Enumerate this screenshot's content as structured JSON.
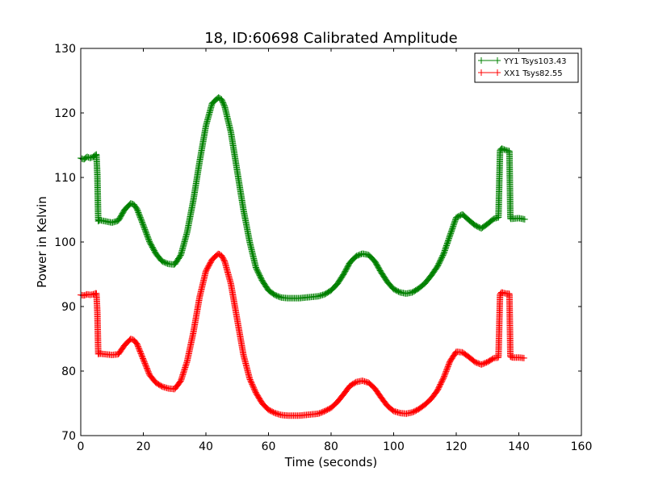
{
  "chart_data": {
    "type": "line",
    "title": "18, ID:60698 Calibrated Amplitude",
    "xlabel": "Time (seconds)",
    "ylabel": "Power in Kelvin",
    "xlim": [
      0,
      160
    ],
    "ylim": [
      70,
      130
    ],
    "xticks": [
      0,
      20,
      40,
      60,
      80,
      100,
      120,
      140,
      160
    ],
    "yticks": [
      70,
      80,
      90,
      100,
      110,
      120,
      130
    ],
    "grid": false,
    "legend_position": "top-right",
    "series": [
      {
        "name": "YY1 Tsys103.43",
        "color": "#008000",
        "marker": "+",
        "x": [
          0,
          1,
          2,
          3,
          4,
          5,
          5.3,
          5.6,
          6,
          8,
          10,
          12,
          14,
          16,
          17,
          18,
          20,
          22,
          24,
          26,
          28,
          30,
          32,
          34,
          36,
          38,
          40,
          42,
          44,
          45,
          46,
          48,
          50,
          52,
          54,
          56,
          58,
          60,
          62,
          64,
          66,
          68,
          70,
          72,
          74,
          76,
          78,
          80,
          82,
          84,
          86,
          88,
          90,
          92,
          94,
          96,
          98,
          100,
          102,
          104,
          106,
          108,
          110,
          112,
          114,
          116,
          118,
          120,
          122,
          124,
          126,
          128,
          130,
          132,
          133.5,
          134,
          134.5,
          136,
          137,
          137.3,
          138,
          140,
          142
        ],
        "y": [
          113,
          112.8,
          113.2,
          113,
          113.2,
          113.6,
          110.5,
          103.2,
          103.4,
          103.2,
          103,
          103.3,
          105,
          106,
          105.8,
          105.1,
          102.6,
          100,
          98.2,
          97,
          96.6,
          96.5,
          98,
          101.5,
          106.5,
          112.5,
          118,
          121.5,
          122.4,
          122.1,
          121,
          117,
          111,
          105,
          100,
          96,
          94,
          92.5,
          91.8,
          91.4,
          91.3,
          91.3,
          91.3,
          91.4,
          91.5,
          91.6,
          91.9,
          92.5,
          93.5,
          95,
          96.8,
          97.8,
          98.2,
          98,
          97,
          95.3,
          93.8,
          92.7,
          92.2,
          92,
          92.2,
          92.8,
          93.6,
          94.8,
          96.2,
          98.2,
          101,
          103.8,
          104.3,
          103.4,
          102.6,
          102.1,
          102.8,
          103.6,
          103.8,
          114.2,
          114.5,
          114.2,
          114.1,
          103.6,
          103.6,
          103.7,
          103.5
        ]
      },
      {
        "name": "XX1 Tsys82.55",
        "color": "#ff0000",
        "marker": "+",
        "x": [
          0,
          1,
          2,
          3,
          4,
          5,
          5.3,
          5.6,
          6,
          8,
          10,
          12,
          14,
          16,
          17,
          18,
          20,
          22,
          24,
          26,
          28,
          30,
          32,
          34,
          36,
          38,
          40,
          42,
          44,
          45,
          46,
          48,
          50,
          52,
          54,
          56,
          58,
          60,
          62,
          64,
          66,
          68,
          70,
          72,
          74,
          76,
          78,
          80,
          82,
          84,
          86,
          88,
          90,
          92,
          94,
          96,
          98,
          100,
          102,
          104,
          106,
          108,
          110,
          112,
          114,
          116,
          118,
          120,
          122,
          124,
          126,
          128,
          130,
          132,
          133.5,
          134,
          134.5,
          136,
          137,
          137.3,
          138,
          140,
          142
        ],
        "y": [
          91.8,
          91.7,
          91.9,
          91.8,
          91.9,
          92.1,
          89.2,
          82.6,
          82.7,
          82.6,
          82.5,
          82.6,
          84,
          85,
          84.8,
          84.2,
          81.8,
          79.4,
          78.2,
          77.6,
          77.3,
          77.2,
          78.5,
          81.5,
          86,
          91.5,
          95.5,
          97.3,
          98.2,
          97.9,
          97,
          93.5,
          88,
          82.5,
          78.8,
          76.6,
          75,
          74,
          73.5,
          73.2,
          73.1,
          73.1,
          73.1,
          73.2,
          73.3,
          73.4,
          73.8,
          74.3,
          75.2,
          76.4,
          77.7,
          78.3,
          78.5,
          78.2,
          77.3,
          75.9,
          74.6,
          73.8,
          73.5,
          73.4,
          73.6,
          74.1,
          74.8,
          75.7,
          77,
          79,
          81.5,
          83,
          82.9,
          82.2,
          81.4,
          81,
          81.4,
          82,
          82.1,
          91.9,
          92.2,
          92,
          92,
          82.2,
          82.1,
          82.1,
          82
        ]
      }
    ]
  }
}
